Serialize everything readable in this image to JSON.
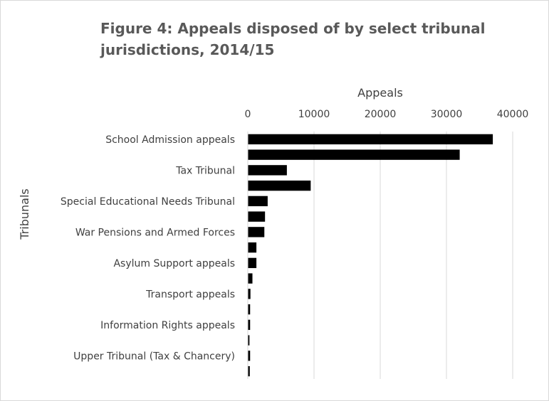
{
  "chart_data": {
    "type": "bar",
    "orientation": "horizontal",
    "title": "Figure 4: Appeals disposed of by select tribunal jurisdictions, 2014/15",
    "xlabel": "Appeals",
    "ylabel": "Tribunals",
    "xlim": [
      0,
      40000
    ],
    "x_ticks": [
      "0",
      "10000",
      "20000",
      "30000",
      "40000"
    ],
    "x_axis_position": "top",
    "grid": true,
    "legend": "none",
    "bar_color": "#000000",
    "categories": [
      {
        "label": "School Admission appeals",
        "value": 37000
      },
      {
        "label": "",
        "value": 32000
      },
      {
        "label": "Tax Tribunal",
        "value": 5900
      },
      {
        "label": "",
        "value": 9500
      },
      {
        "label": "Special Educational Needs Tribunal",
        "value": 3000
      },
      {
        "label": "",
        "value": 2600
      },
      {
        "label": "War Pensions and Armed Forces",
        "value": 2500
      },
      {
        "label": "",
        "value": 1300
      },
      {
        "label": "Asylum Support appeals",
        "value": 1300
      },
      {
        "label": "",
        "value": 700
      },
      {
        "label": "Transport appeals",
        "value": 400
      },
      {
        "label": "",
        "value": 350
      },
      {
        "label": "Information Rights appeals",
        "value": 350
      },
      {
        "label": "",
        "value": 250
      },
      {
        "label": "Upper Tribunal (Tax & Chancery)",
        "value": 350
      },
      {
        "label": "",
        "value": 300
      }
    ]
  }
}
